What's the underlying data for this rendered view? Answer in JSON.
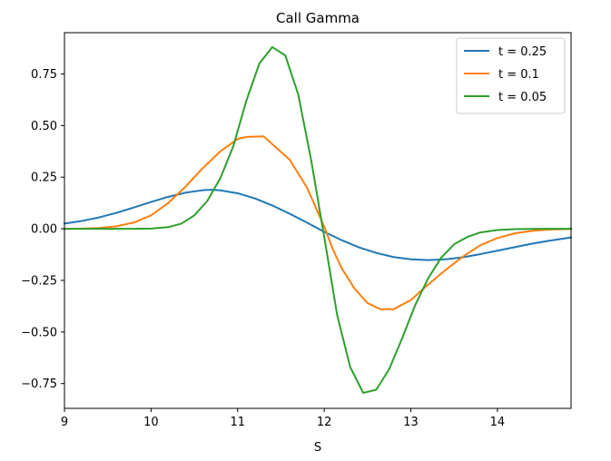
{
  "chart_data": {
    "type": "line",
    "title": "Call Gamma",
    "xlabel": "S",
    "ylabel": "",
    "xlim": [
      9,
      14.85
    ],
    "ylim": [
      -0.87,
      0.95
    ],
    "xticks": [
      9,
      10,
      11,
      12,
      13,
      14
    ],
    "xtick_labels": [
      "9",
      "10",
      "11",
      "12",
      "13",
      "14"
    ],
    "yticks": [
      0.75,
      0.5,
      0.25,
      0.0,
      -0.25,
      -0.5,
      -0.75
    ],
    "ytick_labels": [
      "0.75",
      "0.50",
      "0.25",
      "0.00",
      "−0.25",
      "−0.50",
      "−0.75"
    ],
    "grid": false,
    "legend_position": "top-right",
    "series": [
      {
        "name": "t = 0.25",
        "color": "#1f77b4",
        "x": [
          9.0,
          9.2,
          9.4,
          9.6,
          9.8,
          10.0,
          10.2,
          10.4,
          10.6,
          10.7,
          10.8,
          11.0,
          11.2,
          11.4,
          11.6,
          11.8,
          12.0,
          12.2,
          12.4,
          12.6,
          12.8,
          13.0,
          13.2,
          13.4,
          13.6,
          13.8,
          14.0,
          14.2,
          14.4,
          14.6,
          14.85
        ],
        "y": [
          0.025,
          0.038,
          0.055,
          0.077,
          0.103,
          0.13,
          0.155,
          0.175,
          0.187,
          0.189,
          0.186,
          0.172,
          0.147,
          0.113,
          0.073,
          0.03,
          -0.015,
          -0.055,
          -0.09,
          -0.117,
          -0.137,
          -0.148,
          -0.152,
          -0.148,
          -0.138,
          -0.123,
          -0.106,
          -0.089,
          -0.072,
          -0.058,
          -0.042
        ]
      },
      {
        "name": "t = 0.1",
        "color": "#ff7f0e",
        "x": [
          9.0,
          9.2,
          9.4,
          9.6,
          9.8,
          10.0,
          10.2,
          10.4,
          10.6,
          10.8,
          11.0,
          11.1,
          11.3,
          11.4,
          11.6,
          11.8,
          12.0,
          12.1,
          12.2,
          12.35,
          12.5,
          12.65,
          12.8,
          13.0,
          13.2,
          13.4,
          13.6,
          13.8,
          14.0,
          14.2,
          14.4,
          14.6,
          14.85
        ],
        "y": [
          0.0,
          0.001,
          0.004,
          0.012,
          0.03,
          0.065,
          0.125,
          0.205,
          0.295,
          0.375,
          0.435,
          0.445,
          0.448,
          0.41,
          0.335,
          0.2,
          0.01,
          -0.1,
          -0.19,
          -0.29,
          -0.36,
          -0.39,
          -0.39,
          -0.345,
          -0.27,
          -0.2,
          -0.135,
          -0.08,
          -0.045,
          -0.022,
          -0.01,
          -0.004,
          -0.001
        ]
      },
      {
        "name": "t = 0.05",
        "color": "#2ca02c",
        "x": [
          9.0,
          9.5,
          9.8,
          10.0,
          10.2,
          10.35,
          10.5,
          10.65,
          10.8,
          10.95,
          11.1,
          11.25,
          11.4,
          11.55,
          11.7,
          11.85,
          12.0,
          12.15,
          12.3,
          12.45,
          12.6,
          12.75,
          12.9,
          13.05,
          13.2,
          13.35,
          13.5,
          13.65,
          13.8,
          14.0,
          14.2,
          14.5,
          14.85
        ],
        "y": [
          0.0,
          0.0,
          0.0,
          0.001,
          0.008,
          0.025,
          0.065,
          0.135,
          0.245,
          0.4,
          0.62,
          0.8,
          0.88,
          0.84,
          0.65,
          0.33,
          -0.04,
          -0.42,
          -0.67,
          -0.795,
          -0.78,
          -0.68,
          -0.53,
          -0.37,
          -0.24,
          -0.14,
          -0.075,
          -0.04,
          -0.018,
          -0.006,
          -0.002,
          0.0,
          0.0
        ]
      }
    ]
  }
}
